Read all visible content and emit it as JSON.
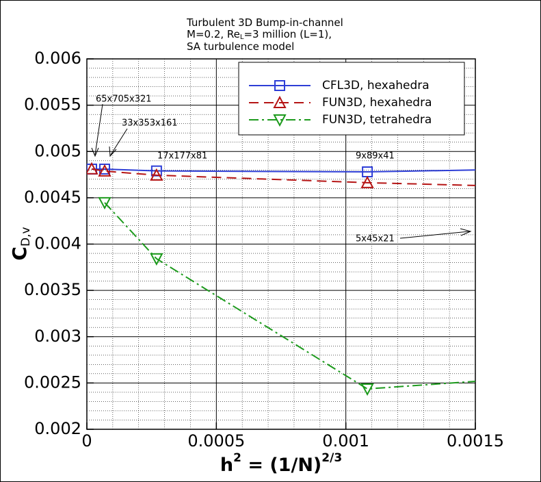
{
  "chart_data": {
    "type": "line",
    "title": [
      [
        "Turbulent 3D Bump-in-channel"
      ],
      [
        "M=0.2, Re",
        "L",
        "=3 million (L=1),"
      ],
      [
        "SA turbulence model"
      ]
    ],
    "xlabel": [
      "h",
      "2",
      " = (1/N)",
      "2/3"
    ],
    "ylabel": [
      "C",
      "D,v"
    ],
    "xlim": [
      0,
      0.0015
    ],
    "xticks": [
      0,
      0.0005,
      0.001,
      0.0015
    ],
    "ylim": [
      0.002,
      0.006
    ],
    "yticks": [
      0.002,
      0.0025,
      0.003,
      0.0035,
      0.004,
      0.0045,
      0.005,
      0.0055,
      0.006
    ],
    "grid": true,
    "minor_grid_divisions": 5,
    "legend": "upper right",
    "series": [
      {
        "name": "CFL3D, hexahedra",
        "color": "#2e3ed6",
        "dash": "solid",
        "marker": "square",
        "x": [
          1.85e-05,
          6.87e-05,
          0.000269,
          0.001083,
          0.0015
        ],
        "values": [
          0.00481,
          0.00481,
          0.00479,
          0.00478,
          0.0048
        ],
        "markers": [
          true,
          true,
          true,
          true,
          false
        ]
      },
      {
        "name": "FUN3D, hexahedra",
        "color": "#b51414",
        "dash": "dash",
        "marker": "triangle",
        "x": [
          1.85e-05,
          6.87e-05,
          0.000269,
          0.001083,
          0.0015
        ],
        "values": [
          0.004811,
          0.004788,
          0.004744,
          0.004663,
          0.004633
        ],
        "markers": [
          true,
          true,
          true,
          true,
          false
        ]
      },
      {
        "name": "FUN3D, tetrahedra",
        "color": "#1c9a1c",
        "dash": "dashdot",
        "marker": "triangle-down",
        "x": [
          6.87e-05,
          0.000269,
          0.001083,
          0.0015
        ],
        "values": [
          0.004448,
          0.003842,
          0.002436,
          0.002518
        ],
        "markers": [
          true,
          true,
          true,
          false
        ]
      }
    ],
    "annotations": [
      "65x705x321",
      "33x353x161",
      "17x177x81",
      "9x89x41",
      "5x45x21"
    ]
  }
}
